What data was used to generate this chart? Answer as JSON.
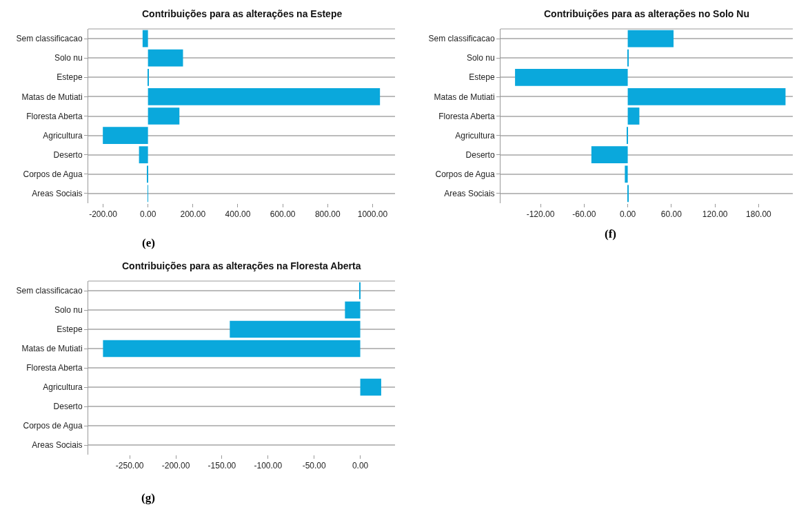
{
  "chart_data": [
    {
      "type": "bar",
      "orientation": "horizontal",
      "title": "Contribuições para as alterações na Estepe",
      "annotations": [
        "(e)"
      ],
      "categories": [
        "Sem classificacao",
        "Solo nu",
        "Estepe",
        "Matas de Mutiati",
        "Floresta Aberta",
        "Agricultura",
        "Deserto",
        "Corpos de Agua",
        "Areas Sociais"
      ],
      "values": [
        -24,
        156,
        2,
        1033,
        140,
        -201,
        -40,
        -5,
        1
      ],
      "color": "#0aa8dc",
      "xlim": [
        -266,
        1100
      ],
      "xticks": [
        {
          "value": -200,
          "label": "-200.00"
        },
        {
          "value": 0,
          "label": "0.00"
        },
        {
          "value": 200,
          "label": "200.00"
        },
        {
          "value": 400,
          "label": "400.00"
        },
        {
          "value": 600,
          "label": "600.00"
        },
        {
          "value": 800,
          "label": "800.00"
        },
        {
          "value": 1000,
          "label": "1000.00"
        }
      ],
      "grid": "y"
    },
    {
      "type": "bar",
      "orientation": "horizontal",
      "title": "Contribuições para as alterações no Solo Nu",
      "annotations": [
        "(f)"
      ],
      "categories": [
        "Sem classificacao",
        "Solo nu",
        "Estepe",
        "Matas de Mutiati",
        "Floresta Aberta",
        "Agricultura",
        "Deserto",
        "Corpos de Agua",
        "Areas Sociais"
      ],
      "values": [
        63,
        1,
        -155,
        217,
        16,
        -1,
        -50,
        -4,
        1
      ],
      "color": "#0aa8dc",
      "xlim": [
        -175,
        227
      ],
      "xticks": [
        {
          "value": -120,
          "label": "-120.00"
        },
        {
          "value": -60,
          "label": "-60.00"
        },
        {
          "value": 0,
          "label": "0.00"
        },
        {
          "value": 60,
          "label": "60.00"
        },
        {
          "value": 120,
          "label": "120.00"
        },
        {
          "value": 180,
          "label": "180.00"
        }
      ],
      "grid": "y"
    },
    {
      "type": "bar",
      "orientation": "horizontal",
      "title": "Contribuições para as alterações na Floresta Aberta",
      "annotations": [
        "(g)"
      ],
      "categories": [
        "Sem classificacao",
        "Solo nu",
        "Estepe",
        "Matas de Mutiati",
        "Floresta Aberta",
        "Agricultura",
        "Deserto",
        "Corpos de Agua",
        "Areas Sociais"
      ],
      "values": [
        -1,
        -16.6,
        -141.5,
        -279,
        0,
        22.7,
        0,
        0,
        0
      ],
      "color": "#0aa8dc",
      "xlim": [
        -295,
        37.7
      ],
      "xticks": [
        {
          "value": -250,
          "label": "-250.00"
        },
        {
          "value": -200,
          "label": "-200.00"
        },
        {
          "value": -150,
          "label": "-150.00"
        },
        {
          "value": -100,
          "label": "-100.00"
        },
        {
          "value": -50,
          "label": "-50.00"
        },
        {
          "value": 0,
          "label": "0.00"
        }
      ],
      "grid": "y"
    }
  ]
}
